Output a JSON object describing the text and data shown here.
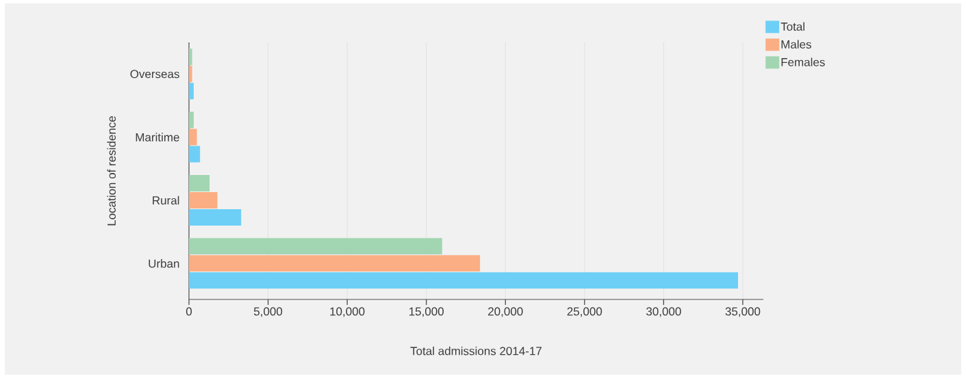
{
  "chart_data": {
    "type": "bar",
    "orientation": "horizontal",
    "xlabel": "Total admissions 2014-17",
    "ylabel": "Location of residence",
    "categories": [
      "Overseas",
      "Maritime",
      "Rural",
      "Urban"
    ],
    "series": [
      {
        "name": "Total",
        "color": "#6dcff6",
        "values": [
          300,
          700,
          3300,
          34700
        ]
      },
      {
        "name": "Males",
        "color": "#fbae83",
        "values": [
          200,
          500,
          1800,
          18400
        ]
      },
      {
        "name": "Females",
        "color": "#a2d5b1",
        "values": [
          200,
          300,
          1300,
          16000
        ]
      }
    ],
    "xlim": [
      0,
      36300
    ],
    "xticks": [
      0,
      {
        "value": 5000,
        "label": "5,000"
      },
      {
        "value": 10000,
        "label": "10,000"
      },
      {
        "value": 15000,
        "label": "15,000"
      },
      {
        "value": 20000,
        "label": "20,000"
      },
      {
        "value": 25000,
        "label": "25,000"
      },
      {
        "value": 30000,
        "label": "30,000"
      },
      {
        "value": 35000,
        "label": "35,000"
      }
    ],
    "grid": "x",
    "legend": "top right"
  }
}
